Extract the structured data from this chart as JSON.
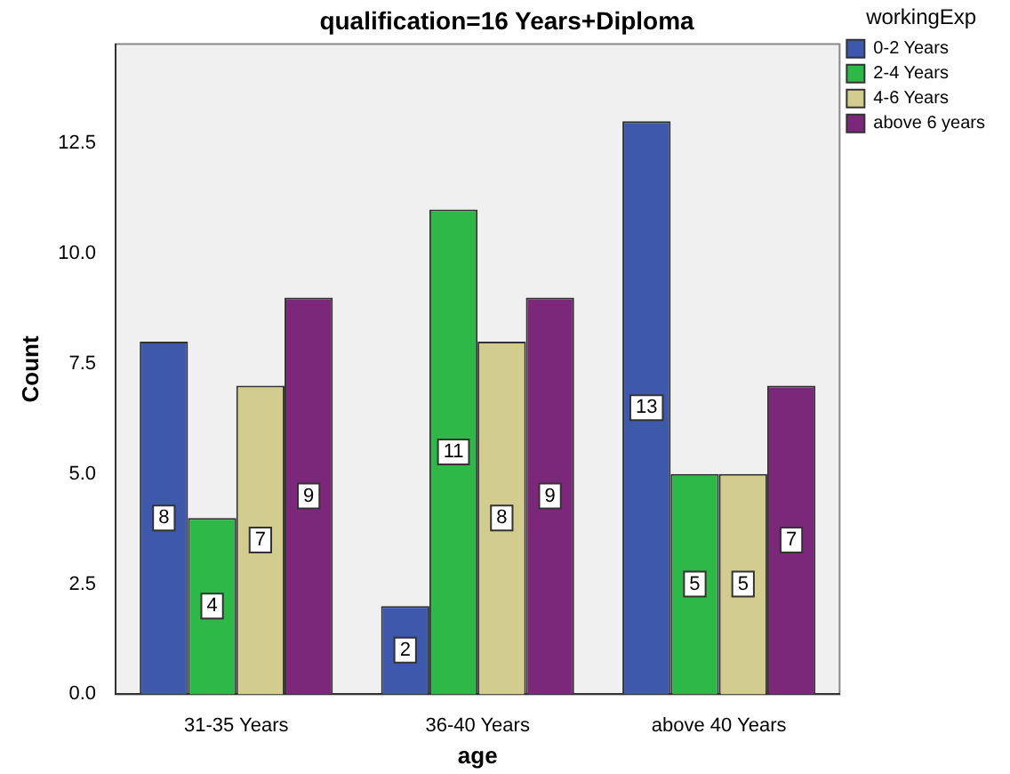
{
  "chart_data": {
    "type": "bar",
    "title": "qualification=16 Years+Diploma",
    "xlabel": "age",
    "ylabel": "Count",
    "legend_title": "workingExp",
    "categories": [
      "31-35 Years",
      "36-40 Years",
      "above 40 Years"
    ],
    "series": [
      {
        "name": "0-2 Years",
        "color": "#3e58ac",
        "values": [
          8,
          2,
          13
        ]
      },
      {
        "name": "2-4 Years",
        "color": "#2eb848",
        "values": [
          4,
          11,
          5
        ]
      },
      {
        "name": "4-6 Years",
        "color": "#d2cc8e",
        "values": [
          7,
          8,
          5
        ]
      },
      {
        "name": "above 6 years",
        "color": "#7b287a",
        "values": [
          9,
          9,
          7
        ]
      }
    ],
    "ylim": [
      0,
      14.75
    ],
    "yticks": [
      {
        "value": 0,
        "label": "0.0"
      },
      {
        "value": 2.5,
        "label": "2.5"
      },
      {
        "value": 5,
        "label": "5.0"
      },
      {
        "value": 7.5,
        "label": "7.5"
      },
      {
        "value": 10,
        "label": "10.0"
      },
      {
        "value": 12.5,
        "label": "12.5"
      }
    ],
    "grid": false,
    "legend": "top right",
    "data_labels": true
  }
}
